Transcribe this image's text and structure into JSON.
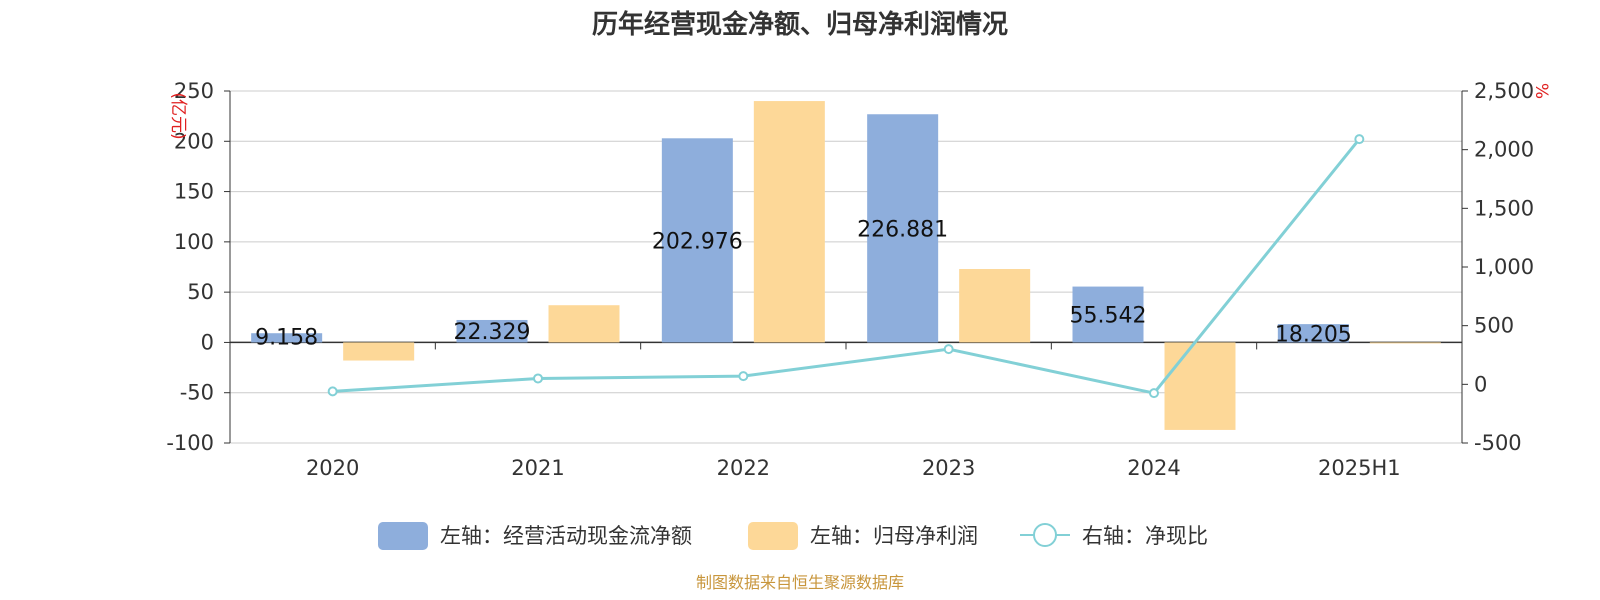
{
  "title": "历年经营现金净额、归母净利润情况",
  "source": "制图数据来自恒生聚源数据库",
  "colors": {
    "cash": "#8eaedc",
    "profit": "#fdd898",
    "ratio": "#82d0d6",
    "unit": "#e02020",
    "source": "#c8963c"
  },
  "chart_data": {
    "type": "bar",
    "categories": [
      "2020",
      "2021",
      "2022",
      "2023",
      "2024",
      "2025H1"
    ],
    "left_axis": {
      "unit": "(亿元)",
      "ylim": [
        -100,
        250
      ],
      "ticks": [
        250,
        200,
        150,
        100,
        50,
        0,
        -50,
        -100
      ],
      "tick_labels": [
        "250",
        "200",
        "150",
        "100",
        "50",
        "0",
        "-50",
        "-100"
      ]
    },
    "right_axis": {
      "unit": "%",
      "ylim": [
        -500,
        2500
      ],
      "ticks": [
        2500,
        2000,
        1500,
        1000,
        500,
        0,
        -500
      ],
      "tick_labels": [
        "2,500",
        "2,000",
        "1,500",
        "1,000",
        "500",
        "0",
        "-500"
      ]
    },
    "grid": true,
    "legend_position": "bottom",
    "series": [
      {
        "name": "左轴：经营活动现金流净额",
        "type": "bar",
        "axis": "left",
        "values": [
          9.158,
          22.329,
          202.976,
          226.881,
          55.542,
          18.205
        ],
        "labels": [
          "9.158",
          "22.329",
          "202.976",
          "226.881",
          "55.542",
          "18.205"
        ]
      },
      {
        "name": "左轴：归母净利润",
        "type": "bar",
        "axis": "left",
        "values": [
          -18,
          37,
          240,
          73,
          -87,
          -0.5
        ]
      },
      {
        "name": "右轴：净现比",
        "type": "line",
        "axis": "right",
        "values": [
          -60,
          50,
          70,
          300,
          -75,
          2090
        ]
      }
    ]
  }
}
